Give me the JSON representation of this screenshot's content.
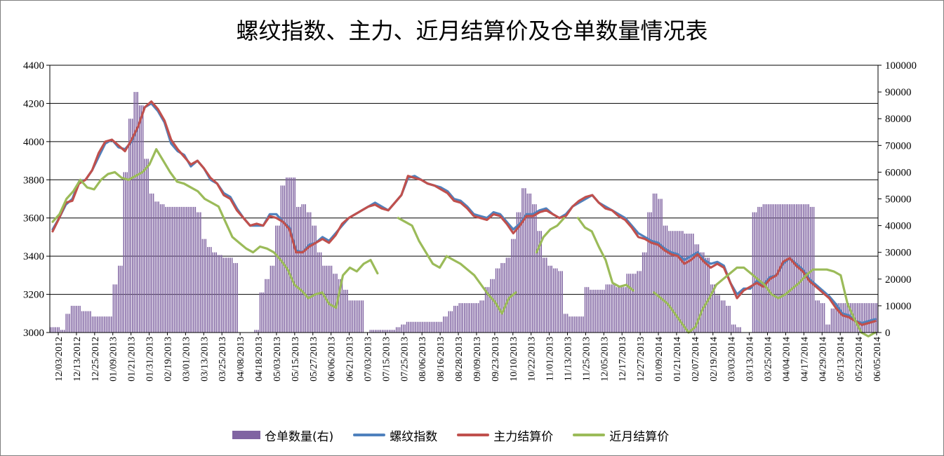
{
  "chart_data": {
    "type": "bar+line",
    "title": "螺纹指数、主力、近月结算价及仓单数量情况表",
    "y_left": {
      "ticks": [
        "3000",
        "3200",
        "3400",
        "3600",
        "3800",
        "4000",
        "4200",
        "4400"
      ],
      "ylim": [
        3000,
        4400
      ]
    },
    "y_right": {
      "ticks": [
        "0",
        "10000",
        "20000",
        "30000",
        "40000",
        "50000",
        "60000",
        "70000",
        "80000",
        "90000",
        "100000"
      ],
      "ylim": [
        0,
        100000
      ]
    },
    "x_ticks": [
      "12/03/2012",
      "12/13/2012",
      "12/25/2012",
      "01/09/2013",
      "01/21/2013",
      "01/31/2013",
      "02/19/2013",
      "03/01/2013",
      "03/13/2013",
      "03/25/2013",
      "04/08/2013",
      "04/18/2013",
      "05/03/2013",
      "05/15/2013",
      "05/27/2013",
      "06/06/2013",
      "06/21/2013",
      "07/03/2013",
      "07/15/2013",
      "07/25/2013",
      "08/06/2013",
      "08/16/2013",
      "08/28/2013",
      "09/09/2013",
      "09/23/2013",
      "10/10/2013",
      "10/22/2013",
      "11/01/2013",
      "11/13/2013",
      "11/25/2013",
      "12/05/2013",
      "12/17/2013",
      "12/27/2013",
      "01/09/2014",
      "01/21/2014",
      "02/07/2014",
      "02/19/2014",
      "03/03/2014",
      "03/13/2014",
      "03/25/2014",
      "04/04/2014",
      "04/17/2014",
      "04/29/2014",
      "05/13/2014",
      "05/23/2014",
      "06/05/2014"
    ],
    "grid": true,
    "legend_position": "bottom",
    "series": [
      {
        "name": "仓单数量(右)",
        "type": "bar",
        "axis": "right",
        "color": "#8064a2",
        "values": [
          2000,
          2000,
          1000,
          7000,
          10000,
          10000,
          8000,
          8000,
          6000,
          6000,
          6000,
          6000,
          18000,
          25000,
          60000,
          80000,
          90000,
          85000,
          65000,
          52000,
          49000,
          48000,
          47000,
          47000,
          47000,
          47000,
          47000,
          47000,
          45000,
          35000,
          32000,
          30000,
          29000,
          28000,
          28000,
          26000,
          0,
          0,
          0,
          1000,
          15000,
          20000,
          25000,
          40000,
          55000,
          58000,
          58000,
          47000,
          48000,
          45000,
          40000,
          30000,
          25000,
          25000,
          22000,
          20000,
          16000,
          12000,
          12000,
          12000,
          0,
          1000,
          1000,
          1000,
          1000,
          1000,
          2000,
          3000,
          4000,
          4000,
          4000,
          4000,
          4000,
          4000,
          4000,
          6000,
          8000,
          10000,
          11000,
          11000,
          11000,
          11000,
          12000,
          17000,
          20000,
          24000,
          26000,
          28000,
          35000,
          45000,
          54000,
          52000,
          48000,
          38000,
          28000,
          25000,
          24000,
          23000,
          7000,
          6000,
          6000,
          6000,
          17000,
          16000,
          16000,
          16000,
          18000,
          18000,
          17000,
          17000,
          22000,
          22000,
          23000,
          30000,
          45000,
          52000,
          50000,
          40000,
          38000,
          38000,
          38000,
          37000,
          37000,
          33000,
          30000,
          28000,
          18000,
          14000,
          12000,
          10000,
          3000,
          2000,
          0,
          0,
          45000,
          47000,
          48000,
          48000,
          48000,
          48000,
          48000,
          48000,
          48000,
          48000,
          48000,
          47000,
          12000,
          11000,
          3000,
          9000,
          11000,
          11000,
          11000,
          11000,
          11000,
          11000,
          11000,
          11000
        ]
      },
      {
        "name": "螺纹指数",
        "type": "line",
        "axis": "left",
        "color": "#4f81bd",
        "values": [
          3540,
          3600,
          3670,
          3700,
          3790,
          3800,
          3850,
          3920,
          3990,
          4010,
          3970,
          3960,
          4000,
          4080,
          4180,
          4200,
          4160,
          4100,
          3990,
          3950,
          3930,
          3870,
          3900,
          3860,
          3800,
          3780,
          3730,
          3710,
          3650,
          3600,
          3560,
          3560,
          3560,
          3620,
          3620,
          3580,
          3550,
          3430,
          3420,
          3460,
          3470,
          3500,
          3480,
          3520,
          3560,
          3600,
          3620,
          3640,
          3660,
          3680,
          3660,
          3640,
          3680,
          3720,
          3810,
          3820,
          3800,
          3780,
          3770,
          3760,
          3740,
          3700,
          3690,
          3660,
          3620,
          3610,
          3600,
          3630,
          3620,
          3580,
          3540,
          3570,
          3620,
          3620,
          3640,
          3650,
          3620,
          3600,
          3620,
          3660,
          3680,
          3700,
          3720,
          3680,
          3660,
          3640,
          3620,
          3600,
          3560,
          3520,
          3500,
          3480,
          3470,
          3440,
          3420,
          3410,
          3380,
          3400,
          3420,
          3380,
          3360,
          3370,
          3350,
          3260,
          3200,
          3230,
          3230,
          3270,
          3250,
          3290,
          3300,
          3360,
          3390,
          3360,
          3330,
          3280,
          3250,
          3220,
          3190,
          3150,
          3100,
          3090,
          3060,
          3050,
          3060,
          3070
        ]
      },
      {
        "name": "主力结算价",
        "type": "line",
        "axis": "left",
        "color": "#c0504d",
        "values": [
          3530,
          3600,
          3680,
          3690,
          3780,
          3800,
          3850,
          3940,
          4000,
          4010,
          3980,
          3950,
          4010,
          4080,
          4180,
          4210,
          4170,
          4110,
          4010,
          3960,
          3920,
          3880,
          3900,
          3860,
          3810,
          3780,
          3720,
          3700,
          3640,
          3600,
          3560,
          3570,
          3560,
          3610,
          3600,
          3580,
          3540,
          3420,
          3420,
          3450,
          3470,
          3490,
          3470,
          3510,
          3570,
          3600,
          3620,
          3640,
          3660,
          3670,
          3650,
          3640,
          3680,
          3720,
          3820,
          3810,
          3800,
          3780,
          3770,
          3750,
          3730,
          3690,
          3680,
          3650,
          3610,
          3600,
          3590,
          3620,
          3610,
          3570,
          3520,
          3560,
          3610,
          3610,
          3630,
          3640,
          3620,
          3600,
          3610,
          3660,
          3690,
          3710,
          3720,
          3680,
          3650,
          3640,
          3610,
          3590,
          3550,
          3500,
          3490,
          3470,
          3460,
          3430,
          3410,
          3400,
          3360,
          3380,
          3410,
          3370,
          3340,
          3360,
          3340,
          3260,
          3180,
          3220,
          3240,
          3260,
          3240,
          3280,
          3300,
          3370,
          3390,
          3350,
          3320,
          3270,
          3240,
          3210,
          3180,
          3130,
          3090,
          3080,
          3060,
          3040,
          3050,
          3060
        ]
      },
      {
        "name": "近月结算价",
        "type": "line",
        "axis": "left",
        "color": "#9bbb59",
        "values": [
          3580,
          3620,
          3700,
          3740,
          3800,
          3760,
          3750,
          3800,
          3830,
          3840,
          3810,
          3800,
          3820,
          3840,
          3880,
          3960,
          3900,
          3840,
          3790,
          3780,
          3760,
          3740,
          3700,
          3680,
          3660,
          3580,
          3500,
          3470,
          3440,
          3420,
          3450,
          3440,
          3420,
          3380,
          3330,
          3250,
          3220,
          3180,
          3200,
          3210,
          3150,
          3130,
          3300,
          3340,
          3320,
          3360,
          3380,
          3310,
          null,
          null,
          3600,
          3580,
          3560,
          3480,
          3420,
          3360,
          3340,
          3400,
          3380,
          3360,
          3330,
          3300,
          3250,
          3200,
          3160,
          3100,
          3180,
          3210,
          null,
          null,
          3420,
          3500,
          3540,
          3560,
          3600,
          null,
          3600,
          3550,
          3530,
          3450,
          3380,
          3260,
          3240,
          3250,
          3220,
          null,
          null,
          3210,
          3180,
          3150,
          3100,
          3050,
          3000,
          3030,
          3120,
          3180,
          3250,
          3280,
          3310,
          3340,
          3340,
          3310,
          3280,
          3250,
          3200,
          3180,
          3200,
          3230,
          3260,
          3300,
          3330,
          3330,
          3330,
          3320,
          3300,
          3150,
          3070,
          3000,
          2980,
          3000
        ]
      }
    ]
  }
}
